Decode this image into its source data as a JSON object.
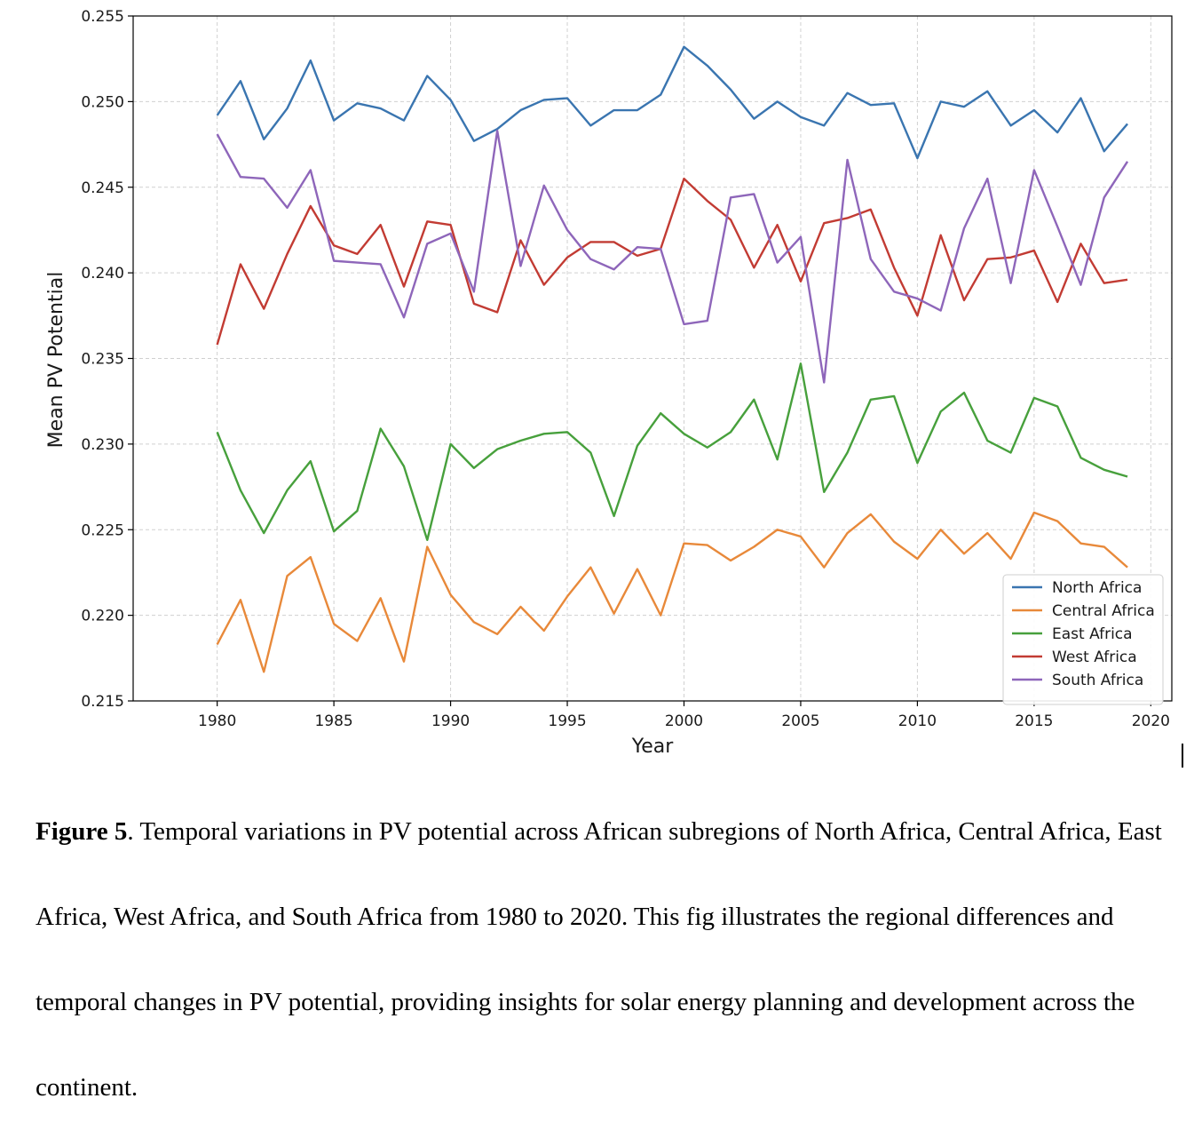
{
  "chart_data": {
    "type": "line",
    "xlabel": "Year",
    "ylabel": "Mean PV Potential",
    "xlim": [
      1976.4,
      2020.9
    ],
    "ylim": [
      0.215,
      0.255
    ],
    "xticks": [
      1980,
      1985,
      1990,
      1995,
      2000,
      2005,
      2010,
      2015,
      2020
    ],
    "yticks": [
      0.215,
      0.22,
      0.225,
      0.23,
      0.235,
      0.24,
      0.245,
      0.25,
      0.255
    ],
    "ytick_labels": [
      "0.215",
      "0.220",
      "0.225",
      "0.230",
      "0.235",
      "0.240",
      "0.245",
      "0.250",
      "0.255"
    ],
    "grid": true,
    "legend_position": "lower right",
    "x": [
      1980,
      1981,
      1982,
      1983,
      1984,
      1985,
      1986,
      1987,
      1988,
      1989,
      1990,
      1991,
      1992,
      1993,
      1994,
      1995,
      1996,
      1997,
      1998,
      1999,
      2000,
      2001,
      2002,
      2003,
      2004,
      2005,
      2006,
      2007,
      2008,
      2009,
      2010,
      2011,
      2012,
      2013,
      2014,
      2015,
      2016,
      2017,
      2018,
      2019
    ],
    "series": [
      {
        "name": "North Africa",
        "color": "#3a75b0",
        "values": [
          0.2492,
          0.2512,
          0.2478,
          0.2496,
          0.2524,
          0.2489,
          0.2499,
          0.2496,
          0.2489,
          0.2515,
          0.2501,
          0.2477,
          0.2484,
          0.2495,
          0.2501,
          0.2502,
          0.2486,
          0.2495,
          0.2495,
          0.2504,
          0.2532,
          0.2521,
          0.2507,
          0.249,
          0.25,
          0.2491,
          0.2486,
          0.2505,
          0.2498,
          0.2499,
          0.2467,
          0.25,
          0.2497,
          0.2506,
          0.2486,
          0.2495,
          0.2482,
          0.2502,
          0.2471,
          0.2487
        ]
      },
      {
        "name": "Central Africa",
        "color": "#e8893a",
        "values": [
          0.2183,
          0.2209,
          0.2167,
          0.2223,
          0.2234,
          0.2195,
          0.2185,
          0.221,
          0.2173,
          0.224,
          0.2212,
          0.2196,
          0.2189,
          0.2205,
          0.2191,
          0.2211,
          0.2228,
          0.2201,
          0.2227,
          0.22,
          0.2242,
          0.2241,
          0.2232,
          0.224,
          0.225,
          0.2246,
          0.2228,
          0.2248,
          0.2259,
          0.2243,
          0.2233,
          0.225,
          0.2236,
          0.2248,
          0.2233,
          0.226,
          0.2255,
          0.2242,
          0.224,
          0.2228
        ]
      },
      {
        "name": "East Africa",
        "color": "#47a03c",
        "values": [
          0.2307,
          0.2273,
          0.2248,
          0.2273,
          0.229,
          0.2249,
          0.2261,
          0.2309,
          0.2287,
          0.2244,
          0.23,
          0.2286,
          0.2297,
          0.2302,
          0.2306,
          0.2307,
          0.2295,
          0.2258,
          0.2299,
          0.2318,
          0.2306,
          0.2298,
          0.2307,
          0.2326,
          0.2291,
          0.2347,
          0.2272,
          0.2295,
          0.2326,
          0.2328,
          0.2289,
          0.2319,
          0.233,
          0.2302,
          0.2295,
          0.2327,
          0.2322,
          0.2292,
          0.2285,
          0.2281
        ]
      },
      {
        "name": "West Africa",
        "color": "#c23b33",
        "values": [
          0.2358,
          0.2405,
          0.2379,
          0.2411,
          0.2439,
          0.2416,
          0.2411,
          0.2428,
          0.2392,
          0.243,
          0.2428,
          0.2382,
          0.2377,
          0.2419,
          0.2393,
          0.2409,
          0.2418,
          0.2418,
          0.241,
          0.2414,
          0.2455,
          0.2442,
          0.2431,
          0.2403,
          0.2428,
          0.2395,
          0.2429,
          0.2432,
          0.2437,
          0.2403,
          0.2375,
          0.2422,
          0.2384,
          0.2408,
          0.2409,
          0.2413,
          0.2383,
          0.2417,
          0.2394,
          0.2396
        ]
      },
      {
        "name": "South Africa",
        "color": "#8e66ba",
        "values": [
          0.2481,
          0.2456,
          0.2455,
          0.2438,
          0.246,
          0.2407,
          0.2406,
          0.2405,
          0.2374,
          0.2417,
          0.2423,
          0.2389,
          0.2483,
          0.2404,
          0.2451,
          0.2425,
          0.2408,
          0.2402,
          0.2415,
          0.2414,
          0.237,
          0.2372,
          0.2444,
          0.2446,
          0.2406,
          0.2421,
          0.2336,
          0.2466,
          0.2408,
          0.2389,
          0.2385,
          0.2378,
          0.2426,
          0.2455,
          0.2394,
          0.246,
          0.2427,
          0.2393,
          0.2444,
          0.2465
        ]
      }
    ]
  },
  "caption": {
    "label": "Figure 5",
    "text": ". Temporal variations in PV potential across African subregions of North Africa, Central Africa, East Africa, West Africa, and South Africa from 1980 to 2020. This fig illustrates the regional differences and temporal changes in PV potential, providing insights for solar energy planning and development across the continent."
  }
}
